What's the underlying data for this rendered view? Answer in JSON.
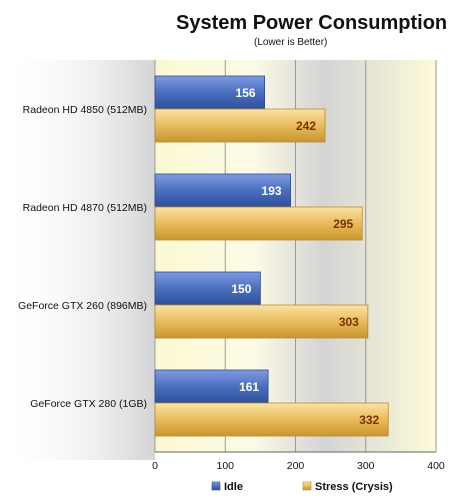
{
  "chart_data": {
    "type": "bar",
    "orientation": "horizontal",
    "title": "System Power Consumption",
    "subtitle": "(Lower is Better)",
    "categories": [
      "Radeon HD 4850 (512MB)",
      "Radeon HD 4870 (512MB)",
      "GeForce GTX 260 (896MB)",
      "GeForce GTX 280 (1GB)"
    ],
    "series": [
      {
        "name": "Idle",
        "values": [
          156,
          193,
          150,
          161
        ],
        "color": "#4a6fbf",
        "label_color": "#ffffff"
      },
      {
        "name": "Stress (Crysis)",
        "values": [
          242,
          295,
          303,
          332
        ],
        "color": "#e8bb5c",
        "label_color": "#7a3300"
      }
    ],
    "xlim": [
      0,
      400
    ],
    "xticks": [
      "0",
      "100",
      "200",
      "300",
      "400"
    ],
    "grid": true,
    "legend_position": "bottom"
  }
}
